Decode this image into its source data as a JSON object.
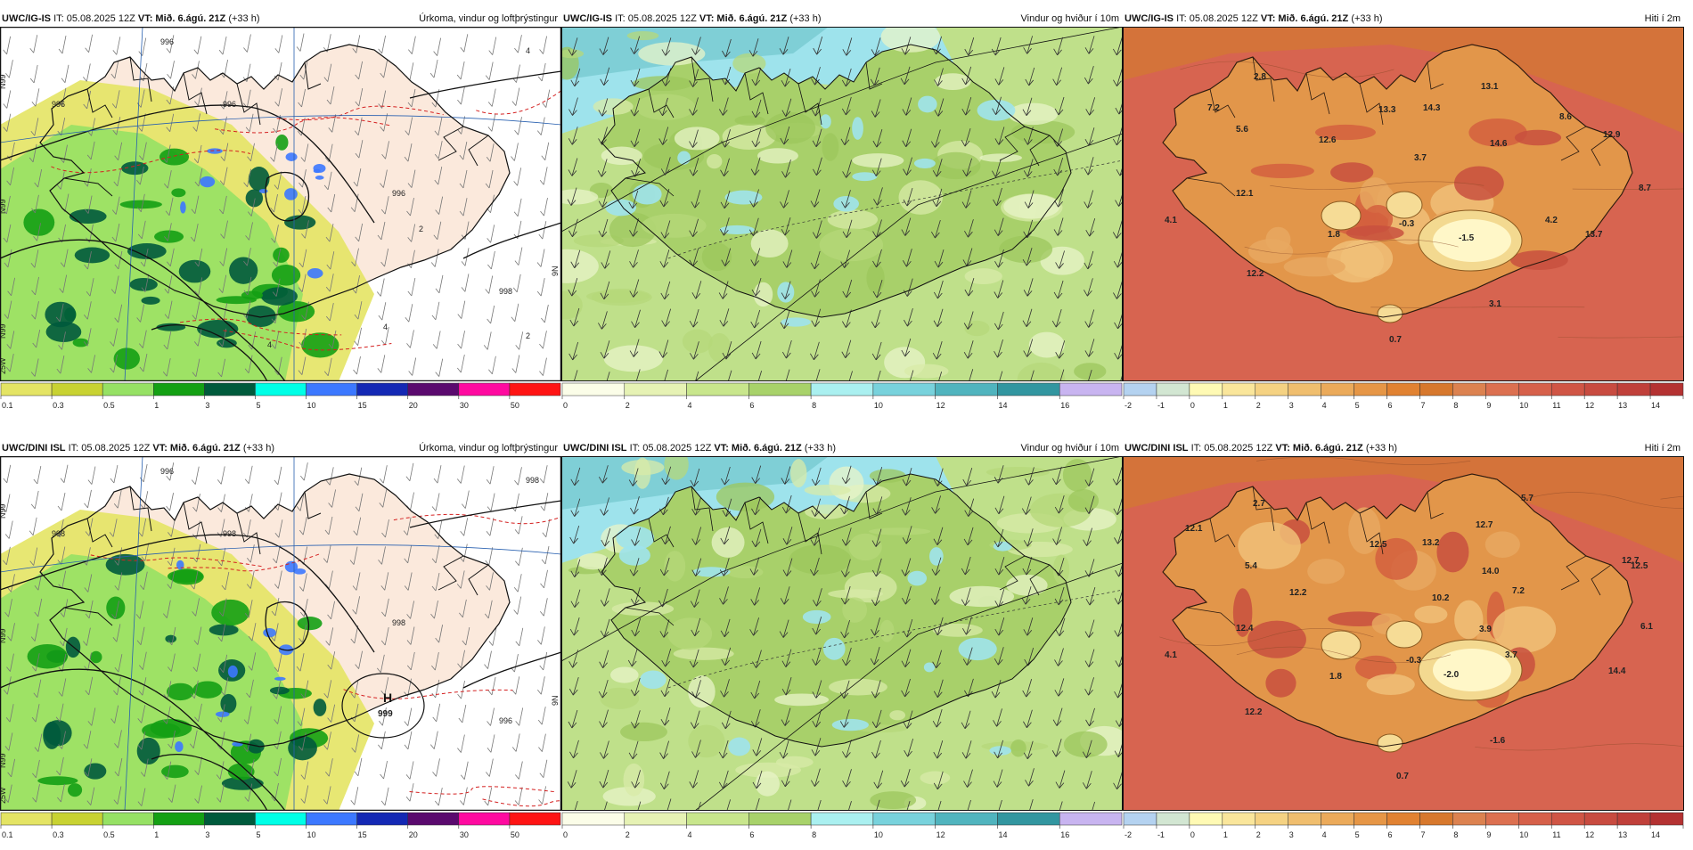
{
  "rows": [
    {
      "panels": [
        {
          "kind": "precip",
          "model": "UWC/IG-IS",
          "it": "IT: 05.08.2025 12Z",
          "vt": "VT: Mið. 6.ágú. 21Z",
          "lead": "(+33 h)",
          "title": "Úrkoma, vindur og loftþrýstingur",
          "pressure_labels": [
            "996",
            "996",
            "996",
            "998",
            "996",
            "4",
            "2",
            "4",
            "2",
            "4"
          ],
          "lat_labels": [
            "N99",
            "N99",
            "N99"
          ],
          "lon_labels": [
            "25W",
            "9N"
          ]
        },
        {
          "kind": "wind",
          "model": "UWC/IG-IS",
          "it": "IT: 05.08.2025 12Z",
          "vt": "VT: Mið. 6.ágú. 21Z",
          "lead": "(+33 h)",
          "title": "Vindur og hviður í 10m"
        },
        {
          "kind": "temp",
          "model": "UWC/IG-IS",
          "it": "IT: 05.08.2025 12Z",
          "vt": "VT: Mið. 6.ágú. 21Z",
          "lead": "(+33 h)",
          "title": "Hiti í 2m",
          "values": [
            "2.8",
            "13.1",
            "7.2",
            "13.3",
            "14.3",
            "8.6",
            "5.6",
            "12.6",
            "14.6",
            "12.9",
            "3.7",
            "8.7",
            "12.1",
            "4.1",
            "-0.3",
            "4.2",
            "1.8",
            "-1.5",
            "13.7",
            "12.2",
            "3.1",
            "0.7"
          ]
        }
      ]
    },
    {
      "panels": [
        {
          "kind": "precip",
          "model": "UWC/DINI ISL",
          "it": "IT: 05.08.2025 12Z",
          "vt": "VT: Mið. 6.ágú. 21Z",
          "lead": "(+33 h)",
          "title": "Úrkoma, vindur og loftþrýstingur",
          "pressure_labels": [
            "996",
            "998",
            "998",
            "996",
            "998",
            "998"
          ],
          "high_letter": "H",
          "high_value": "999",
          "lat_labels": [
            "N99",
            "N99",
            "N99"
          ],
          "lon_labels": [
            "25W",
            "9N"
          ]
        },
        {
          "kind": "wind",
          "model": "UWC/DINI ISL",
          "it": "IT: 05.08.2025 12Z",
          "vt": "VT: Mið. 6.ágú. 21Z",
          "lead": "(+33 h)",
          "title": "Vindur og hviður í 10m"
        },
        {
          "kind": "temp",
          "model": "UWC/DINI ISL",
          "it": "IT: 05.08.2025 12Z",
          "vt": "VT: Mið. 6.ágú. 21Z",
          "lead": "(+33 h)",
          "title": "Hiti í 2m",
          "values": [
            "2.7",
            "5.7",
            "12.1",
            "12.7",
            "12.5",
            "13.2",
            "12.7",
            "5.4",
            "14.0",
            "12.5",
            "12.2",
            "10.2",
            "7.2",
            "12.4",
            "3.9",
            "6.1",
            "4.1",
            "3.7",
            "-0.3",
            "1.8",
            "-2.0",
            "14.4",
            "12.2",
            "-1.6",
            "0.7"
          ]
        }
      ]
    }
  ],
  "colorbars": {
    "precip": {
      "ticks": [
        "0.1",
        "0.3",
        "0.5",
        "1",
        "3",
        "5",
        "10",
        "15",
        "20",
        "30",
        "50"
      ],
      "colors": [
        "#e4e464",
        "#c8d232",
        "#96e164",
        "#14a014",
        "#005a3c",
        "#00ffe6",
        "#3c78ff",
        "#1428b4",
        "#5a0a6e",
        "#ff0aa0",
        "#ff1414"
      ]
    },
    "wind": {
      "ticks": [
        "0",
        "2",
        "4",
        "6",
        "8",
        "10",
        "12",
        "14",
        "16"
      ],
      "colors": [
        "#fbfde8",
        "#e6f2b4",
        "#c8e68c",
        "#a8d26a",
        "#aaf0f0",
        "#78d2dc",
        "#50b4be",
        "#3296a0",
        "#c8b4f0"
      ]
    },
    "temp": {
      "ticks": [
        "-2",
        "-1",
        "0",
        "1",
        "2",
        "3",
        "4",
        "5",
        "6",
        "7",
        "8",
        "9",
        "10",
        "11",
        "12",
        "13",
        "14",
        "15"
      ],
      "colors": [
        "#b4d2f0",
        "#d2e6d2",
        "#fffab4",
        "#fae69b",
        "#f5d282",
        "#f0be6e",
        "#ebaa5a",
        "#e69646",
        "#e18232",
        "#d7782d",
        "#dc8250",
        "#dc7050",
        "#d6604a",
        "#d05545",
        "#c84b40",
        "#c0403a",
        "#b43232"
      ]
    }
  },
  "colors": {
    "land_mask": "#fbe9dc",
    "sea_precip": "#ffffff",
    "isobar": "#111111",
    "thickness": "#d42020",
    "wind_land": "#a8d06a",
    "wind_sea_strong": "#9ee3ec",
    "temp_sea": "#d76450",
    "temp_land": "#e08a3a",
    "temp_cold": "#fff7c8"
  }
}
